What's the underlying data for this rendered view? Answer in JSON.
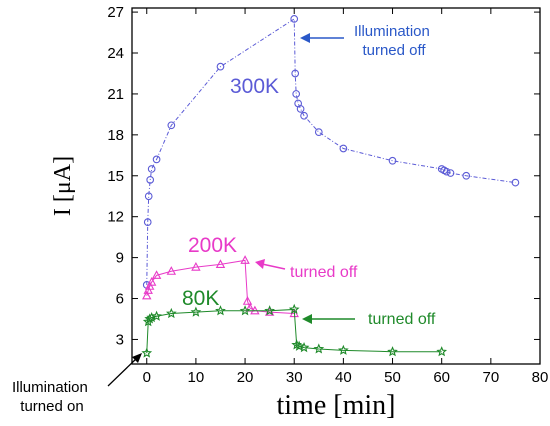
{
  "chart_data": {
    "type": "line",
    "xlabel": "time [min]",
    "ylabel": "I [μA]",
    "xlim": [
      -3,
      80
    ],
    "ylim": [
      1.2,
      27.3
    ],
    "xticks": [
      0,
      10,
      20,
      30,
      40,
      50,
      60,
      70,
      80
    ],
    "yticks": [
      3,
      6,
      9,
      12,
      15,
      18,
      21,
      24,
      27
    ],
    "series": [
      {
        "name": "300K",
        "color": "#5b5bd6",
        "marker": "circle",
        "x": [
          0,
          0.2,
          0.4,
          0.7,
          1,
          2,
          5,
          15,
          30,
          30.2,
          30.4,
          30.8,
          31.3,
          32,
          35,
          40,
          50,
          60,
          60.5,
          61,
          61.8,
          65,
          75
        ],
        "y": [
          7.0,
          11.6,
          13.5,
          14.7,
          15.5,
          16.2,
          18.7,
          23.0,
          26.5,
          22.5,
          21.0,
          20.3,
          19.9,
          19.4,
          18.2,
          17.0,
          16.1,
          15.5,
          15.4,
          15.3,
          15.2,
          15.0,
          14.5
        ]
      },
      {
        "name": "200K",
        "color": "#e83ac8",
        "marker": "triangle",
        "x": [
          0,
          0.3,
          0.6,
          1,
          2,
          5,
          10,
          15,
          20,
          20.5,
          21,
          22,
          25,
          30
        ],
        "y": [
          6.2,
          6.6,
          6.9,
          7.2,
          7.7,
          8.0,
          8.3,
          8.5,
          8.8,
          5.8,
          5.3,
          5.1,
          5.0,
          4.9
        ],
        "annotation": "turned off"
      },
      {
        "name": "80K",
        "color": "#1f8a2a",
        "marker": "star",
        "x": [
          0,
          0.3,
          0.6,
          1,
          2,
          5,
          10,
          15,
          20,
          25,
          30,
          30.5,
          31,
          32,
          35,
          40,
          50,
          60
        ],
        "y": [
          2.0,
          4.3,
          4.5,
          4.6,
          4.7,
          4.9,
          5.0,
          5.1,
          5.1,
          5.1,
          5.2,
          2.6,
          2.5,
          2.4,
          2.3,
          2.2,
          2.1,
          2.1
        ],
        "annotation": "turned off"
      }
    ],
    "annotations": {
      "off_300k": "Illumination turned off",
      "on": "Illumination turned on"
    }
  }
}
